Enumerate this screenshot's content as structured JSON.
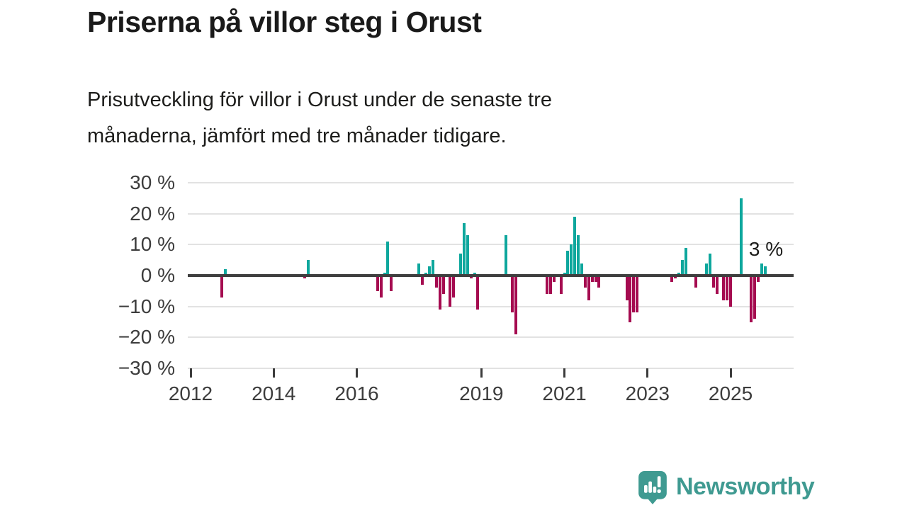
{
  "title": "Priserna på villor steg i Orust",
  "subtitle": {
    "line1": "Prisutveckling för villor i Orust under de senaste tre",
    "line2": "månaderna, jämfört med tre månader tidigare."
  },
  "branding": {
    "logo_text": "Newsworthy",
    "logo_color": "#3f9a91"
  },
  "colors": {
    "positive_bar": "#0ea79d",
    "negative_bar": "#a50b50",
    "zero_axis": "#3f3f3f",
    "gridline": "#e2e2e2",
    "axis_text": "#3c3c3c",
    "heading_text": "#1a1a1a"
  },
  "chart_data": {
    "type": "bar",
    "unit": "%",
    "title": "",
    "xlabel": "",
    "ylabel": "",
    "ylim": [
      -30,
      30
    ],
    "grid": true,
    "y_ticks": [
      30,
      20,
      10,
      0,
      -10,
      -20,
      -30
    ],
    "y_tick_labels": [
      "30 %",
      "20 %",
      "10 %",
      "0 %",
      "−10 %",
      "−20 %",
      "−30 %"
    ],
    "x_ticks": [
      2012,
      2014,
      2016,
      2019,
      2021,
      2023,
      2025
    ],
    "x_domain_months": [
      "2011-12",
      "2026-06"
    ],
    "annotation": {
      "text": "3 %",
      "point": "2025-11"
    },
    "points": [
      [
        "2012-10",
        -7
      ],
      [
        "2012-11",
        2
      ],
      [
        "2014-10",
        -1
      ],
      [
        "2014-11",
        5
      ],
      [
        "2016-07",
        -5
      ],
      [
        "2016-08",
        -7
      ],
      [
        "2016-09",
        1
      ],
      [
        "2016-10",
        11
      ],
      [
        "2016-11",
        -5
      ],
      [
        "2017-07",
        4
      ],
      [
        "2017-08",
        -3
      ],
      [
        "2017-09",
        1
      ],
      [
        "2017-10",
        3
      ],
      [
        "2017-11",
        5
      ],
      [
        "2017-12",
        -4
      ],
      [
        "2018-01",
        -11
      ],
      [
        "2018-02",
        -6
      ],
      [
        "2018-04",
        -10
      ],
      [
        "2018-05",
        -7
      ],
      [
        "2018-07",
        7
      ],
      [
        "2018-08",
        17
      ],
      [
        "2018-09",
        13
      ],
      [
        "2018-10",
        -1
      ],
      [
        "2018-11",
        1
      ],
      [
        "2018-12",
        -11
      ],
      [
        "2019-08",
        13
      ],
      [
        "2019-10",
        -12
      ],
      [
        "2019-11",
        -19
      ],
      [
        "2020-08",
        -6
      ],
      [
        "2020-09",
        -6
      ],
      [
        "2020-10",
        -2
      ],
      [
        "2020-12",
        -6
      ],
      [
        "2021-01",
        1
      ],
      [
        "2021-02",
        8
      ],
      [
        "2021-03",
        10
      ],
      [
        "2021-04",
        19
      ],
      [
        "2021-05",
        13
      ],
      [
        "2021-06",
        4
      ],
      [
        "2021-07",
        -4
      ],
      [
        "2021-08",
        -8
      ],
      [
        "2021-09",
        -2
      ],
      [
        "2021-10",
        -2
      ],
      [
        "2021-11",
        -4
      ],
      [
        "2022-07",
        -8
      ],
      [
        "2022-08",
        -15
      ],
      [
        "2022-09",
        -12
      ],
      [
        "2022-10",
        -12
      ],
      [
        "2023-08",
        -2
      ],
      [
        "2023-09",
        -1
      ],
      [
        "2023-10",
        1
      ],
      [
        "2023-11",
        5
      ],
      [
        "2023-12",
        9
      ],
      [
        "2024-03",
        -4
      ],
      [
        "2024-06",
        4
      ],
      [
        "2024-07",
        7
      ],
      [
        "2024-08",
        -4
      ],
      [
        "2024-09",
        -6
      ],
      [
        "2024-11",
        -8
      ],
      [
        "2024-12",
        -8
      ],
      [
        "2025-01",
        -10
      ],
      [
        "2025-04",
        25
      ],
      [
        "2025-07",
        -15
      ],
      [
        "2025-08",
        -14
      ],
      [
        "2025-09",
        -2
      ],
      [
        "2025-10",
        4
      ],
      [
        "2025-11",
        3
      ]
    ]
  }
}
